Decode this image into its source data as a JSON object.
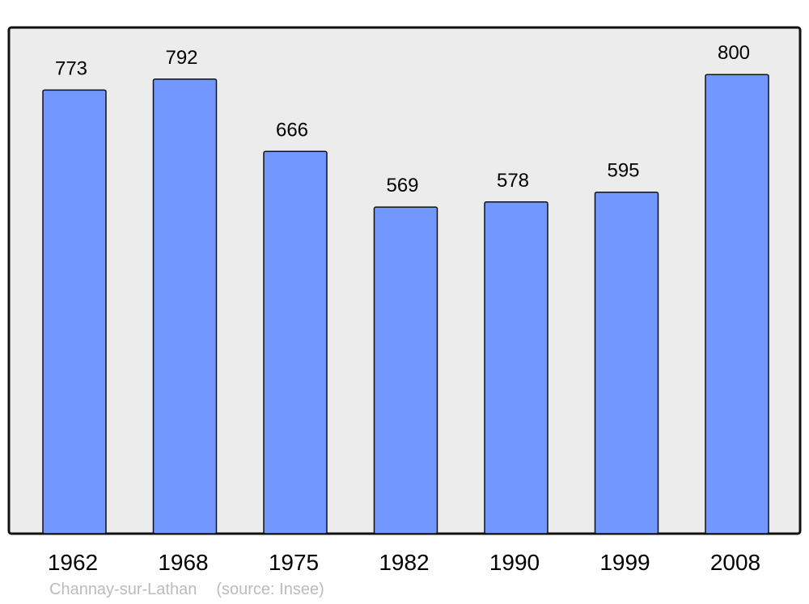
{
  "chart_data": {
    "type": "bar",
    "categories": [
      "1962",
      "1968",
      "1975",
      "1982",
      "1990",
      "1999",
      "2008"
    ],
    "values": [
      773,
      792,
      666,
      569,
      578,
      595,
      800
    ],
    "title": "",
    "xlabel": "",
    "ylabel": "",
    "ylim": [
      0,
      882
    ],
    "grid": false,
    "data_labels": true,
    "colors": {
      "bar": "#7298ff",
      "plot_background": "#ececec",
      "frame": "#111111",
      "caption": "#bbbbbb"
    }
  },
  "caption": {
    "place": "Channay-sur-Lathan",
    "source": "(source: Insee)"
  }
}
